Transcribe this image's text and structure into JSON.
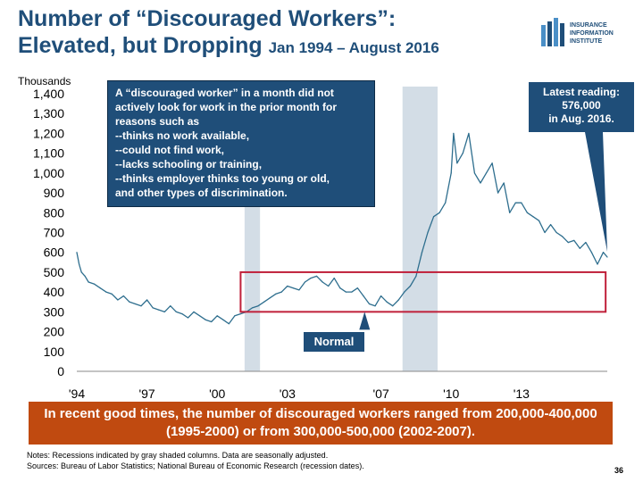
{
  "title": {
    "line1": "Number of “Discouraged Workers”:",
    "line2": "Elevated, but Dropping",
    "line2_sub": "Jan 1994 – August 2016"
  },
  "logo": {
    "line1": "INSURANCE",
    "line2": "INFORMATION",
    "line3": "INSTITUTE",
    "color": "#1f4e79"
  },
  "units_label": "Thousands",
  "definition_box": "A “discouraged worker” in a month did not actively look for work in the prior month for reasons such as\n--thinks no work available,\n--could not find work,\n--lacks schooling or training,\n--thinks employer thinks too young or old,\nand other types of discrimination.",
  "latest_box": "Latest reading:\n576,000\nin Aug. 2016.",
  "normal_label": "Normal",
  "banner": "In recent good times, the number of discouraged workers ranged from 200,000-400,000 (1995-2000) or from 300,000-500,000 (2002-2007).",
  "notes": {
    "line1": "Notes: Recessions indicated by gray shaded columns. Data are seasonally adjusted.",
    "line2": "Sources: Bureau of Labor Statistics; National Bureau of Economic Research (recession dates)."
  },
  "page_number": "36",
  "chart_data": {
    "type": "line",
    "title": "Number of “Discouraged Workers”: Elevated, but Dropping",
    "ylabel": "Thousands",
    "xlabel": "",
    "ylim": [
      0,
      1400
    ],
    "yticks": [
      0,
      100,
      200,
      300,
      400,
      500,
      600,
      700,
      800,
      900,
      1000,
      1100,
      1200,
      1300,
      1400
    ],
    "ytick_labels": [
      "0",
      "100",
      "200",
      "300",
      "400",
      "500",
      "600",
      "700",
      "800",
      "900",
      "1,000",
      "1,100",
      "1,200",
      "1,300",
      "1,400"
    ],
    "xlim": [
      1994.0,
      2016.67
    ],
    "xticks": [
      1994,
      1997,
      2000,
      2003,
      2007,
      2010,
      2013
    ],
    "xtick_labels": [
      "'94",
      "'97",
      "'00",
      "'03",
      "'07",
      "'10",
      "'13"
    ],
    "grid": false,
    "legend": "none",
    "line_color": "#2e6e8e",
    "recessions": [
      [
        2001.17,
        2001.83
      ],
      [
        2007.92,
        2009.42
      ]
    ],
    "recession_color": "#d3dde6",
    "normal_range": {
      "x": [
        2001.0,
        2016.6
      ],
      "y": [
        300,
        500
      ],
      "color": "#c0203a"
    },
    "series": [
      {
        "x": [
          1994.0,
          1994.1,
          1994.2,
          1994.35,
          1994.5,
          1994.75,
          1995.0,
          1995.25,
          1995.5,
          1995.75,
          1996.0,
          1996.25,
          1996.5,
          1996.75,
          1997.0,
          1997.25,
          1997.5,
          1997.75,
          1998.0,
          1998.25,
          1998.5,
          1998.75,
          1999.0,
          1999.25,
          1999.5,
          1999.75,
          2000.0,
          2000.25,
          2000.5,
          2000.75,
          2001.0,
          2001.25,
          2001.5,
          2001.75,
          2002.0,
          2002.25,
          2002.5,
          2002.75,
          2003.0,
          2003.25,
          2003.5,
          2003.75,
          2004.0,
          2004.25,
          2004.5,
          2004.75,
          2005.0,
          2005.25,
          2005.5,
          2005.75,
          2006.0,
          2006.25,
          2006.5,
          2006.75,
          2007.0,
          2007.25,
          2007.5,
          2007.75,
          2008.0,
          2008.25,
          2008.5,
          2008.75,
          2009.0,
          2009.25,
          2009.5,
          2009.75,
          2010.0,
          2010.1,
          2010.25,
          2010.5,
          2010.75,
          2011.0,
          2011.25,
          2011.5,
          2011.75,
          2012.0,
          2012.25,
          2012.5,
          2012.75,
          2013.0,
          2013.25,
          2013.5,
          2013.75,
          2014.0,
          2014.25,
          2014.5,
          2014.75,
          2015.0,
          2015.25,
          2015.5,
          2015.75,
          2016.0,
          2016.25,
          2016.5,
          2016.67
        ],
        "values": [
          600,
          540,
          500,
          480,
          450,
          440,
          420,
          400,
          390,
          360,
          380,
          350,
          340,
          330,
          360,
          320,
          310,
          300,
          330,
          300,
          290,
          270,
          300,
          280,
          260,
          250,
          280,
          260,
          240,
          280,
          290,
          300,
          320,
          330,
          350,
          370,
          390,
          400,
          430,
          420,
          410,
          450,
          470,
          480,
          450,
          430,
          470,
          420,
          400,
          400,
          420,
          380,
          340,
          330,
          380,
          350,
          330,
          360,
          400,
          430,
          480,
          600,
          700,
          780,
          800,
          850,
          1000,
          1200,
          1050,
          1100,
          1200,
          1000,
          950,
          1000,
          1050,
          900,
          950,
          800,
          850,
          850,
          800,
          780,
          760,
          700,
          740,
          700,
          680,
          650,
          660,
          620,
          650,
          600,
          540,
          600,
          576
        ]
      }
    ]
  }
}
